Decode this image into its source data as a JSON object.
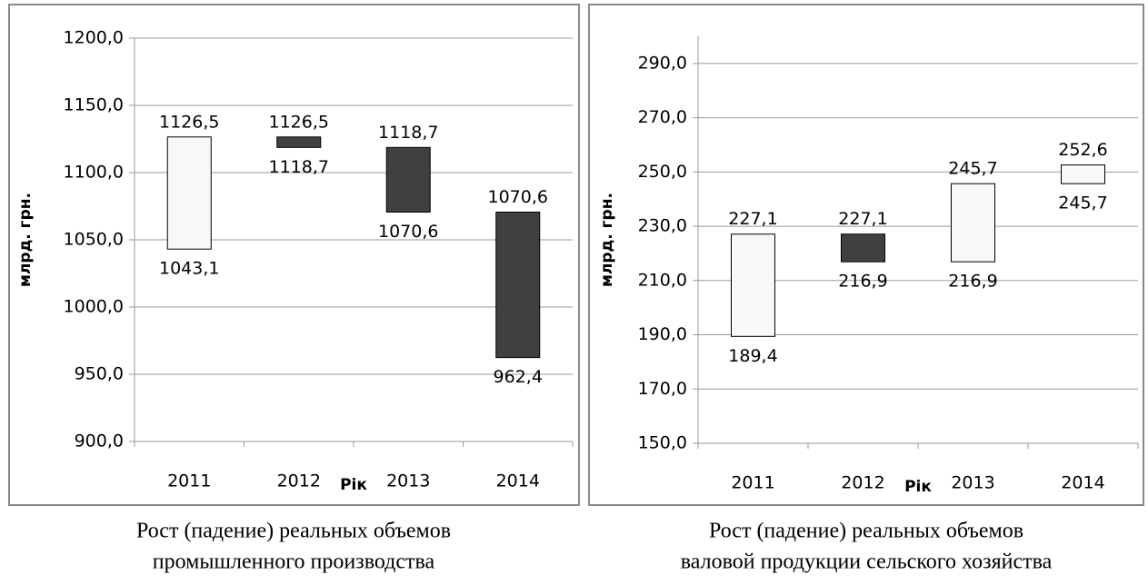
{
  "chart_data": [
    {
      "type": "floating-bar",
      "ylabel": "млрд. грн.",
      "xlabel": "Рік",
      "categories": [
        "2011",
        "2012",
        "2013",
        "2014"
      ],
      "low": [
        1043.1,
        1118.7,
        1070.6,
        962.4
      ],
      "high": [
        1126.5,
        1126.5,
        1118.7,
        1070.6
      ],
      "low_labels": [
        "1043,1",
        "1118,7",
        "1070,6",
        "962,4"
      ],
      "high_labels": [
        "1126,5",
        "1126,5",
        "1118,7",
        "1070,6"
      ],
      "colors": [
        "#f8f8f8",
        "#404040",
        "#404040",
        "#404040"
      ],
      "ylim": [
        900,
        1200
      ],
      "yticks": [
        {
          "value": 900,
          "label": "900,0"
        },
        {
          "value": 950,
          "label": "950,0"
        },
        {
          "value": 1000,
          "label": "1000,0"
        },
        {
          "value": 1050,
          "label": "1050,0"
        },
        {
          "value": 1100,
          "label": "1100,0"
        },
        {
          "value": 1150,
          "label": "1150,0"
        },
        {
          "value": 1200,
          "label": "1200,0"
        }
      ],
      "grid": true,
      "caption": [
        "Рост (падение) реальных объемов",
        "промышленного производства"
      ]
    },
    {
      "type": "floating-bar",
      "ylabel": "млрд. грн.",
      "xlabel": "Рік",
      "categories": [
        "2011",
        "2012",
        "2013",
        "2014"
      ],
      "low": [
        189.4,
        216.9,
        216.9,
        245.7
      ],
      "high": [
        227.1,
        227.1,
        245.7,
        252.6
      ],
      "low_labels": [
        "189,4",
        "216,9",
        "216,9",
        "245,7"
      ],
      "high_labels": [
        "227,1",
        "227,1",
        "245,7",
        "252,6"
      ],
      "colors": [
        "#f8f8f8",
        "#404040",
        "#f8f8f8",
        "#f8f8f8"
      ],
      "ylim": [
        150,
        300
      ],
      "yticks": [
        {
          "value": 150,
          "label": "150,0"
        },
        {
          "value": 170,
          "label": "170,0"
        },
        {
          "value": 190,
          "label": "190,0"
        },
        {
          "value": 210,
          "label": "210,0"
        },
        {
          "value": 230,
          "label": "230,0"
        },
        {
          "value": 250,
          "label": "250,0"
        },
        {
          "value": 270,
          "label": "270,0"
        },
        {
          "value": 290,
          "label": "290,0"
        }
      ],
      "grid": true,
      "caption": [
        "Рост (падение) реальных объемов",
        "валовой продукции сельского хозяйства"
      ]
    }
  ]
}
